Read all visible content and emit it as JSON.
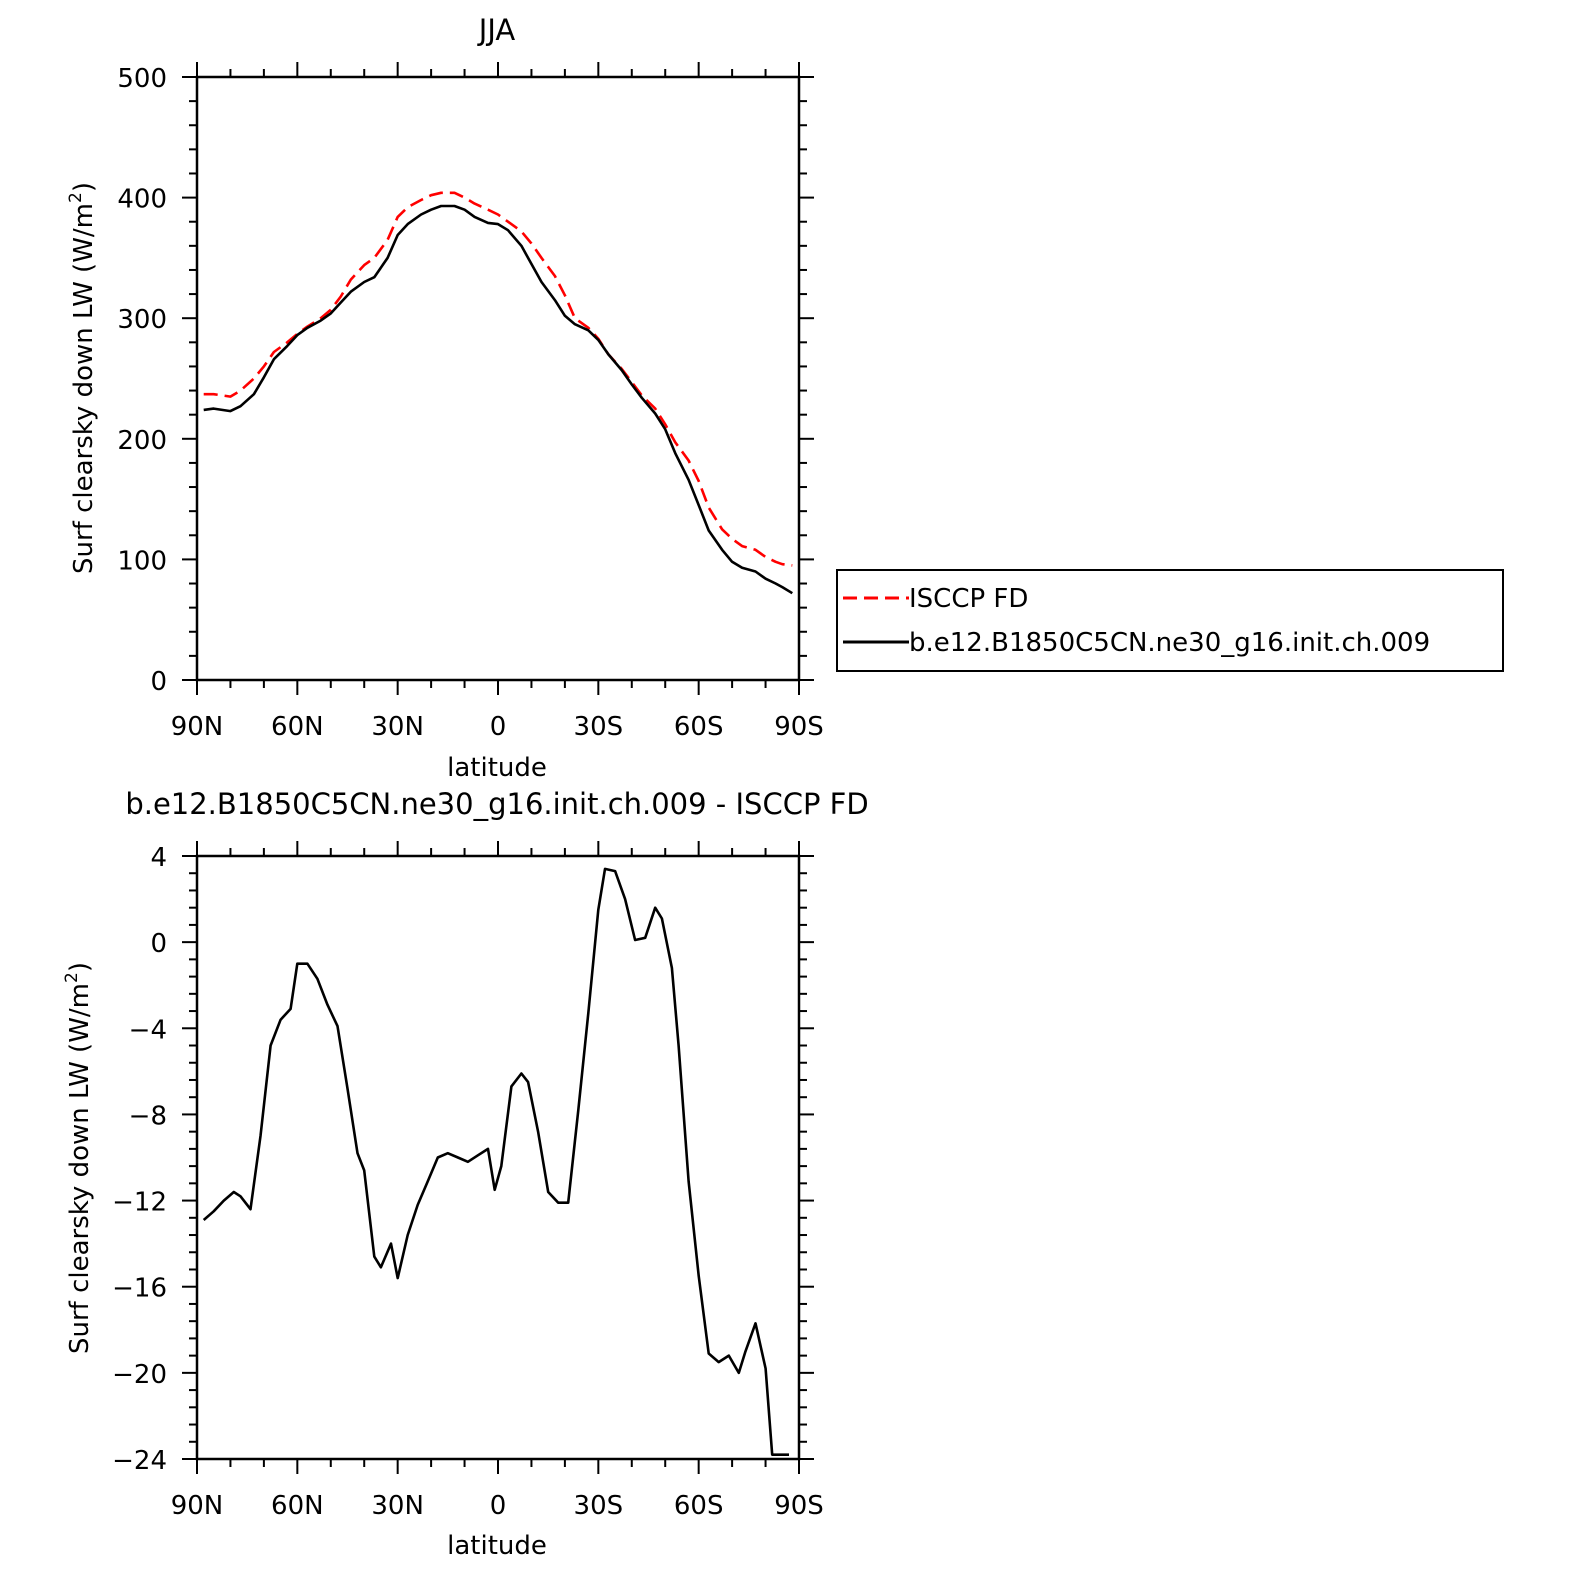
{
  "chart_data": [
    {
      "type": "line",
      "title": "JJA",
      "xlabel": "latitude",
      "ylabel_main": "Surf clearsky down LW (W/m",
      "ylabel_sup": "2",
      "ylabel_close": ")",
      "xlim": [
        90,
        -90
      ],
      "ylim": [
        0,
        500
      ],
      "x_ticks": [
        90,
        60,
        30,
        0,
        -30,
        -60,
        -90
      ],
      "x_tick_labels": [
        "90N",
        "60N",
        "30N",
        "0",
        "30S",
        "60S",
        "90S"
      ],
      "y_ticks": [
        0,
        100,
        200,
        300,
        400,
        500
      ],
      "y_tick_labels": [
        "0",
        "100",
        "200",
        "300",
        "400",
        "500"
      ],
      "legend_position": "right",
      "series": [
        {
          "name": "ISCCP FD",
          "color": "#ff0000",
          "dash": true,
          "x": [
            88,
            85,
            80,
            77,
            73,
            70,
            67,
            63,
            60,
            57,
            53,
            50,
            47,
            44,
            40,
            37,
            33,
            30,
            27,
            23,
            20,
            17,
            13,
            10,
            7,
            3,
            0,
            -3,
            -7,
            -10,
            -13,
            -17,
            -20,
            -23,
            -27,
            -30,
            -33,
            -37,
            -40,
            -43,
            -47,
            -50,
            -53,
            -57,
            -60,
            -63,
            -67,
            -70,
            -73,
            -77,
            -80,
            -83,
            -85,
            -88
          ],
          "y": [
            237,
            237,
            235,
            240,
            250,
            260,
            272,
            280,
            287,
            293,
            300,
            307,
            318,
            332,
            344,
            350,
            365,
            384,
            392,
            398,
            402,
            404,
            404,
            400,
            395,
            390,
            386,
            380,
            372,
            362,
            350,
            335,
            319,
            300,
            292,
            283,
            270,
            258,
            247,
            236,
            225,
            212,
            197,
            182,
            165,
            143,
            125,
            117,
            111,
            108,
            102,
            98,
            96,
            95
          ]
        },
        {
          "name": "b.e12.B1850C5CN.ne30_g16.init.ch.009",
          "color": "#000000",
          "dash": false,
          "x": [
            88,
            85,
            80,
            77,
            73,
            70,
            67,
            63,
            60,
            57,
            53,
            50,
            47,
            44,
            40,
            37,
            33,
            30,
            27,
            23,
            20,
            17,
            13,
            10,
            7,
            3,
            0,
            -3,
            -7,
            -10,
            -13,
            -17,
            -20,
            -23,
            -27,
            -30,
            -33,
            -37,
            -40,
            -43,
            -47,
            -50,
            -53,
            -57,
            -60,
            -63,
            -67,
            -70,
            -73,
            -77,
            -80,
            -83,
            -85,
            -88
          ],
          "y": [
            224,
            225,
            223,
            227,
            237,
            251,
            266,
            277,
            286,
            292,
            298,
            304,
            313,
            322,
            330,
            334,
            350,
            369,
            378,
            386,
            390,
            393,
            393,
            390,
            384,
            379,
            378,
            373,
            360,
            345,
            330,
            315,
            302,
            295,
            290,
            282,
            270,
            257,
            245,
            234,
            221,
            208,
            188,
            166,
            145,
            124,
            108,
            98,
            93,
            90,
            84,
            80,
            77,
            72
          ]
        }
      ]
    },
    {
      "type": "line",
      "title": "b.e12.B1850C5CN.ne30_g16.init.ch.009 - ISCCP FD",
      "xlabel": "latitude",
      "ylabel_main": "Surf clearsky down LW (W/m",
      "ylabel_sup": "2",
      "ylabel_close": ")",
      "xlim": [
        90,
        -90
      ],
      "ylim": [
        -24,
        4
      ],
      "x_ticks": [
        90,
        60,
        30,
        0,
        -30,
        -60,
        -90
      ],
      "x_tick_labels": [
        "90N",
        "60N",
        "30N",
        "0",
        "30S",
        "60S",
        "90S"
      ],
      "y_ticks": [
        -24,
        -20,
        -16,
        -12,
        -8,
        -4,
        0,
        4
      ],
      "y_tick_labels": [
        "−24",
        "−20",
        "−16",
        "−12",
        "−8",
        "−4",
        "0",
        "4"
      ],
      "series": [
        {
          "color": "#000000",
          "dash": false,
          "x": [
            88,
            85,
            82,
            79,
            77,
            74,
            71,
            68,
            65,
            62,
            60,
            57,
            54,
            51,
            48,
            45,
            42,
            40,
            37,
            35,
            32,
            30,
            27,
            24,
            21,
            18,
            15,
            12,
            9,
            6,
            3,
            1,
            -1,
            -4,
            -7,
            -9,
            -12,
            -15,
            -18,
            -21,
            -24,
            -27,
            -30,
            -32,
            -35,
            -38,
            -41,
            -44,
            -47,
            -49,
            -52,
            -54,
            -57,
            -60,
            -63,
            -66,
            -69,
            -72,
            -74,
            -77,
            -80,
            -82,
            -85,
            -87
          ],
          "y": [
            -12.9,
            -12.5,
            -12.0,
            -11.6,
            -11.8,
            -12.4,
            -9.0,
            -4.8,
            -3.6,
            -3.1,
            -1.0,
            -1.0,
            -1.7,
            -2.9,
            -3.9,
            -6.8,
            -9.8,
            -10.6,
            -14.6,
            -15.1,
            -14.0,
            -15.6,
            -13.6,
            -12.2,
            -11.1,
            -10.0,
            -9.8,
            -10.0,
            -10.2,
            -9.9,
            -9.6,
            -11.5,
            -10.4,
            -6.7,
            -6.1,
            -6.5,
            -8.8,
            -11.6,
            -12.1,
            -12.1,
            -7.8,
            -3.3,
            1.5,
            3.4,
            3.3,
            2.0,
            0.1,
            0.2,
            1.6,
            1.1,
            -1.2,
            -4.8,
            -11.1,
            -15.5,
            -19.1,
            -19.5,
            -19.2,
            -20.0,
            -19.0,
            -17.7,
            -19.8,
            -23.8,
            -23.8,
            -23.8
          ]
        }
      ]
    }
  ]
}
